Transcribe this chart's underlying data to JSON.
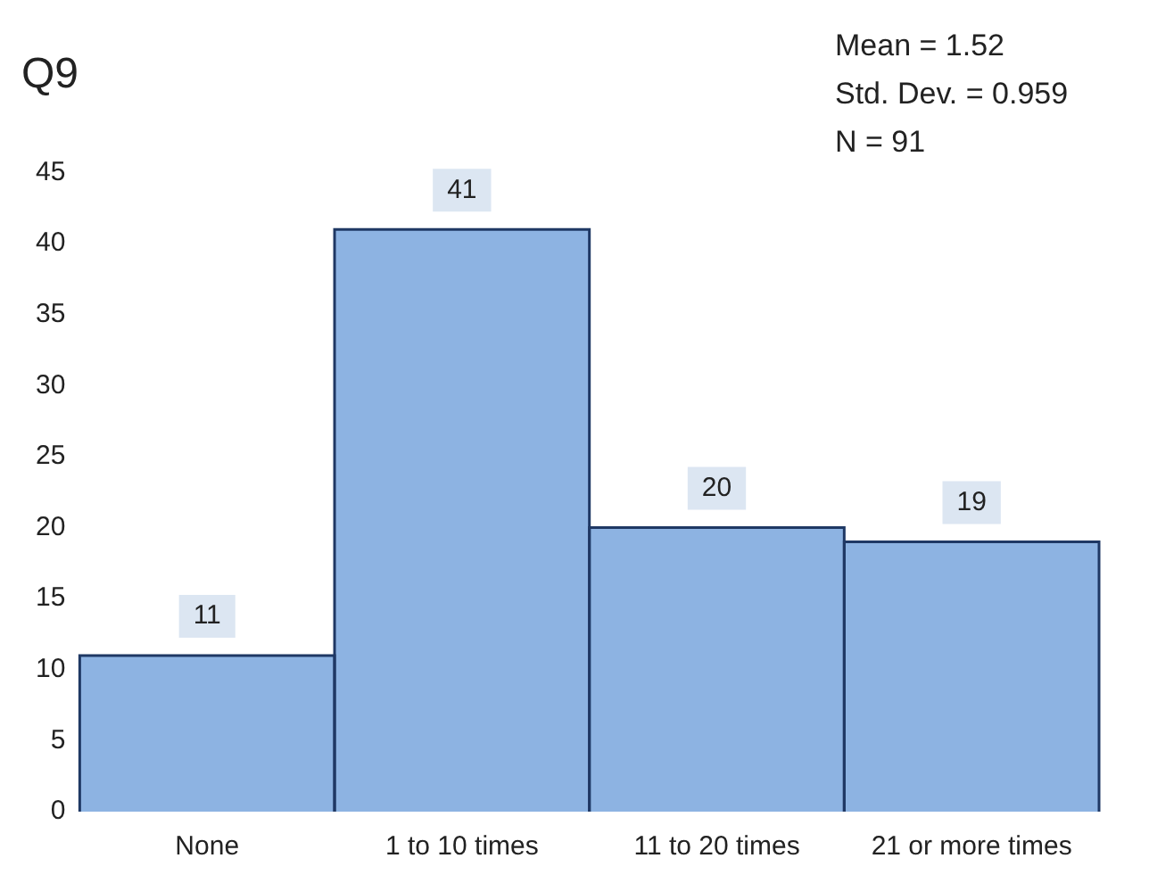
{
  "chart_data": {
    "type": "bar",
    "title": "Q9",
    "categories": [
      "None",
      "1 to 10 times",
      "11 to 20 times",
      "21 or more times"
    ],
    "values": [
      11,
      41,
      20,
      19
    ],
    "color": "#8db3e2",
    "ylim": [
      0,
      45
    ],
    "yticks": [
      0,
      5,
      10,
      15,
      20,
      25,
      30,
      35,
      40,
      45
    ],
    "grid": false,
    "data_labels": true,
    "annotations": [
      "Mean = 1.52",
      "Std. Dev. = 0.959",
      "N = 91"
    ]
  }
}
